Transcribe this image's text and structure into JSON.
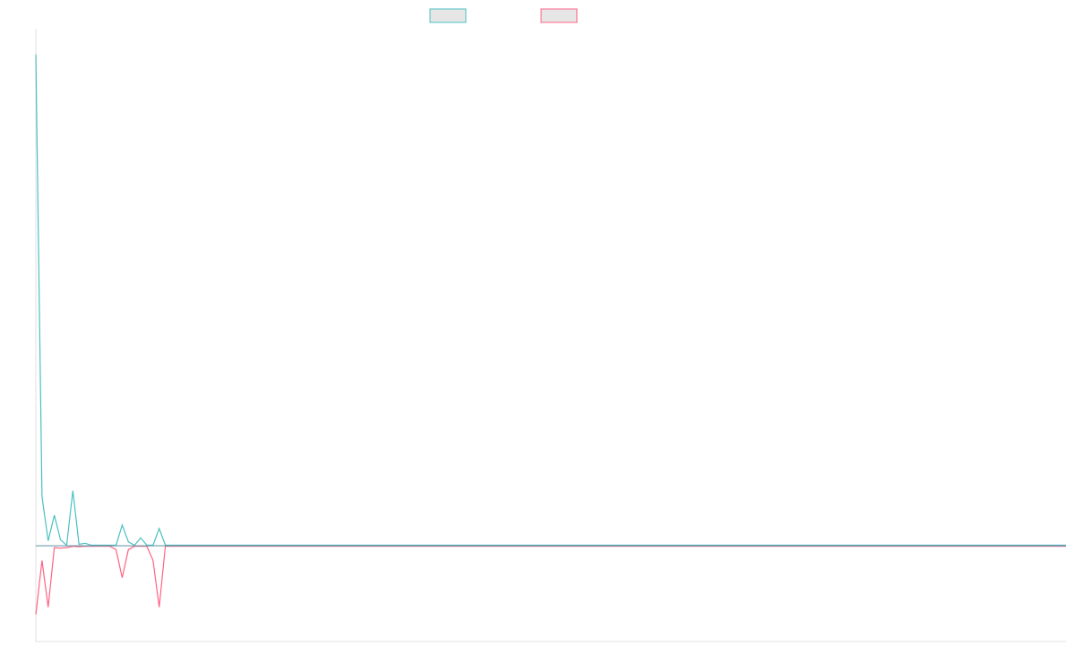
{
  "chart_data": {
    "type": "line",
    "title": "",
    "xlabel": "",
    "ylabel": "",
    "legend": {
      "placement": "top-center",
      "entries": [
        "",
        ""
      ]
    },
    "grid": false,
    "xlim": [
      0,
      167
    ],
    "ylim": [
      -195,
      1045
    ],
    "series": [
      {
        "color": "#4bc0c0",
        "fill": "#e6e6e6",
        "points": [
          [
            0,
            1000
          ],
          [
            1,
            100
          ],
          [
            2,
            10
          ],
          [
            3,
            62
          ],
          [
            4,
            12
          ],
          [
            5,
            1
          ],
          [
            6,
            112
          ],
          [
            7,
            3
          ],
          [
            8,
            5
          ],
          [
            9,
            1
          ],
          [
            12,
            1
          ],
          [
            13,
            1
          ],
          [
            14,
            42
          ],
          [
            15,
            8
          ],
          [
            16,
            1
          ],
          [
            17,
            16
          ],
          [
            18,
            1
          ],
          [
            19,
            1
          ],
          [
            20,
            35
          ],
          [
            21,
            1
          ],
          [
            22,
            1
          ],
          [
            23,
            1
          ],
          [
            24,
            1
          ],
          [
            25,
            1
          ],
          [
            33,
            1
          ],
          [
            34,
            1
          ],
          [
            35,
            1
          ],
          [
            36,
            1
          ],
          [
            37,
            1
          ],
          [
            38,
            1
          ],
          [
            39,
            1
          ],
          [
            40,
            1
          ],
          [
            41,
            1
          ],
          [
            42,
            1
          ],
          [
            43,
            1
          ],
          [
            44,
            1
          ],
          [
            45,
            1
          ],
          [
            46,
            1
          ],
          [
            47,
            1
          ],
          [
            48,
            1
          ],
          [
            49,
            1
          ],
          [
            50,
            1
          ],
          [
            51,
            1
          ],
          [
            52,
            1
          ],
          [
            53,
            1
          ],
          [
            54,
            1
          ],
          [
            55,
            1
          ],
          [
            56,
            1
          ],
          [
            57,
            1
          ],
          [
            58,
            1
          ],
          [
            59,
            1
          ],
          [
            60,
            1
          ],
          [
            61,
            1
          ],
          [
            62,
            1
          ],
          [
            63,
            1
          ],
          [
            64,
            1
          ],
          [
            65,
            1
          ],
          [
            66,
            1
          ],
          [
            67,
            1
          ],
          [
            68,
            1
          ],
          [
            69,
            1
          ],
          [
            70,
            1
          ],
          [
            71,
            1
          ],
          [
            72,
            1
          ],
          [
            73,
            1
          ],
          [
            74,
            1
          ],
          [
            75,
            1
          ],
          [
            76,
            1
          ],
          [
            77,
            1
          ],
          [
            78,
            1
          ],
          [
            79,
            1
          ],
          [
            80,
            1
          ],
          [
            81,
            1
          ],
          [
            82,
            1
          ],
          [
            83,
            1
          ],
          [
            84,
            1
          ],
          [
            85,
            1
          ],
          [
            86,
            1
          ],
          [
            87,
            1
          ],
          [
            88,
            1
          ],
          [
            89,
            1
          ],
          [
            90,
            1
          ],
          [
            91,
            1
          ],
          [
            92,
            1
          ],
          [
            93,
            1
          ],
          [
            94,
            1
          ],
          [
            95,
            1
          ],
          [
            96,
            1
          ],
          [
            97,
            1
          ],
          [
            98,
            1
          ],
          [
            99,
            1
          ],
          [
            100,
            1
          ],
          [
            101,
            1
          ],
          [
            102,
            1
          ],
          [
            103,
            1
          ],
          [
            104,
            1
          ],
          [
            105,
            1
          ],
          [
            106,
            1
          ],
          [
            107,
            1
          ],
          [
            108,
            1
          ],
          [
            109,
            1
          ],
          [
            110,
            1
          ],
          [
            111,
            1
          ],
          [
            112,
            1
          ],
          [
            113,
            1
          ],
          [
            114,
            1
          ],
          [
            115,
            1
          ],
          [
            116,
            1
          ],
          [
            117,
            1
          ],
          [
            118,
            1
          ],
          [
            119,
            1
          ],
          [
            120,
            1
          ],
          [
            121,
            1
          ],
          [
            122,
            1
          ],
          [
            123,
            1
          ],
          [
            124,
            1
          ],
          [
            125,
            1
          ],
          [
            126,
            1
          ],
          [
            127,
            1
          ],
          [
            128,
            1
          ],
          [
            129,
            1
          ],
          [
            130,
            1
          ],
          [
            131,
            1
          ],
          [
            132,
            1
          ],
          [
            133,
            1
          ],
          [
            134,
            1
          ],
          [
            135,
            1
          ],
          [
            136,
            1
          ],
          [
            137,
            1
          ],
          [
            138,
            1
          ],
          [
            139,
            1
          ],
          [
            140,
            1
          ],
          [
            141,
            1
          ],
          [
            142,
            1
          ],
          [
            143,
            1
          ],
          [
            144,
            1
          ],
          [
            145,
            1
          ],
          [
            146,
            1
          ],
          [
            147,
            1
          ],
          [
            148,
            1
          ],
          [
            149,
            1
          ],
          [
            150,
            1
          ],
          [
            151,
            1
          ],
          [
            152,
            1
          ],
          [
            153,
            1
          ],
          [
            154,
            1
          ],
          [
            155,
            1
          ],
          [
            156,
            1
          ],
          [
            157,
            1
          ],
          [
            158,
            1
          ],
          [
            159,
            1
          ],
          [
            160,
            1
          ],
          [
            161,
            1
          ],
          [
            162,
            1
          ],
          [
            163,
            1
          ],
          [
            164,
            1
          ],
          [
            165,
            1
          ],
          [
            166,
            1
          ],
          [
            167,
            1
          ]
        ]
      },
      {
        "color": "#ff6384",
        "fill": "#e6e6e6",
        "points": [
          [
            0,
            -140
          ],
          [
            1,
            -30
          ],
          [
            2,
            -125
          ],
          [
            3,
            -4
          ],
          [
            4,
            -5
          ],
          [
            5,
            -4
          ],
          [
            6,
            -1
          ],
          [
            7,
            -2
          ],
          [
            8,
            -1
          ],
          [
            9,
            -1
          ],
          [
            12,
            -1
          ],
          [
            13,
            -8
          ],
          [
            14,
            -65
          ],
          [
            15,
            -8
          ],
          [
            16,
            -1
          ],
          [
            17,
            -1
          ],
          [
            18,
            -1
          ],
          [
            19,
            -30
          ],
          [
            20,
            -125
          ],
          [
            21,
            -1
          ],
          [
            22,
            -1
          ],
          [
            23,
            -1
          ],
          [
            24,
            -1
          ],
          [
            25,
            -1
          ],
          [
            33,
            -1
          ],
          [
            34,
            -1
          ],
          [
            35,
            -1
          ],
          [
            36,
            -1
          ],
          [
            37,
            -1
          ],
          [
            38,
            -1
          ],
          [
            39,
            -1
          ],
          [
            40,
            -1
          ],
          [
            41,
            -1
          ],
          [
            42,
            -1
          ],
          [
            43,
            -1
          ],
          [
            44,
            -1
          ],
          [
            45,
            -1
          ],
          [
            46,
            -1
          ],
          [
            47,
            -1
          ],
          [
            48,
            -1
          ],
          [
            49,
            -1
          ],
          [
            50,
            -1
          ],
          [
            51,
            -1
          ],
          [
            52,
            -1
          ],
          [
            53,
            -1
          ],
          [
            54,
            -1
          ],
          [
            55,
            -1
          ],
          [
            56,
            -1
          ],
          [
            57,
            -1
          ],
          [
            58,
            -1
          ],
          [
            59,
            -1
          ],
          [
            60,
            -1
          ],
          [
            61,
            -1
          ],
          [
            62,
            -1
          ],
          [
            63,
            -1
          ],
          [
            64,
            -1
          ],
          [
            65,
            -1
          ],
          [
            66,
            -1
          ],
          [
            67,
            -1
          ],
          [
            68,
            -1
          ],
          [
            69,
            -1
          ],
          [
            70,
            -1
          ],
          [
            71,
            -1
          ],
          [
            72,
            -1
          ],
          [
            73,
            -1
          ],
          [
            74,
            -1
          ],
          [
            75,
            -1
          ],
          [
            76,
            -1
          ],
          [
            77,
            -1
          ],
          [
            78,
            -1
          ],
          [
            79,
            -1
          ],
          [
            80,
            -1
          ],
          [
            81,
            -1
          ],
          [
            82,
            -1
          ],
          [
            83,
            -1
          ],
          [
            84,
            -1
          ],
          [
            85,
            -1
          ],
          [
            86,
            -1
          ],
          [
            87,
            -1
          ],
          [
            88,
            -1
          ],
          [
            89,
            -1
          ],
          [
            90,
            -1
          ],
          [
            91,
            -1
          ],
          [
            92,
            -1
          ],
          [
            93,
            -1
          ],
          [
            94,
            -1
          ],
          [
            95,
            -1
          ],
          [
            96,
            -1
          ],
          [
            97,
            -1
          ],
          [
            98,
            -1
          ],
          [
            99,
            -1
          ],
          [
            100,
            -1
          ],
          [
            101,
            -1
          ],
          [
            102,
            -1
          ],
          [
            103,
            -1
          ],
          [
            104,
            -1
          ],
          [
            105,
            -1
          ],
          [
            106,
            -1
          ],
          [
            107,
            -1
          ],
          [
            108,
            -1
          ],
          [
            109,
            -1
          ],
          [
            110,
            -1
          ],
          [
            111,
            -1
          ],
          [
            112,
            -1
          ],
          [
            113,
            -1
          ],
          [
            114,
            -1
          ],
          [
            115,
            -1
          ],
          [
            116,
            -1
          ],
          [
            117,
            -1
          ],
          [
            118,
            -1
          ],
          [
            119,
            -1
          ],
          [
            120,
            -1
          ],
          [
            121,
            -1
          ],
          [
            122,
            -1
          ],
          [
            123,
            -1
          ],
          [
            124,
            -1
          ],
          [
            125,
            -1
          ],
          [
            126,
            -1
          ],
          [
            127,
            -1
          ],
          [
            128,
            -1
          ],
          [
            129,
            -1
          ],
          [
            130,
            -1
          ],
          [
            131,
            -1
          ],
          [
            132,
            -1
          ],
          [
            133,
            -1
          ],
          [
            134,
            -1
          ],
          [
            135,
            -1
          ],
          [
            136,
            -1
          ],
          [
            137,
            -1
          ],
          [
            138,
            -1
          ],
          [
            139,
            -1
          ],
          [
            140,
            -1
          ],
          [
            141,
            -1
          ],
          [
            142,
            -1
          ],
          [
            143,
            -1
          ],
          [
            144,
            -1
          ],
          [
            145,
            -1
          ],
          [
            146,
            -1
          ],
          [
            147,
            -1
          ],
          [
            148,
            -1
          ],
          [
            149,
            -1
          ],
          [
            150,
            -1
          ],
          [
            151,
            -1
          ],
          [
            152,
            -1
          ],
          [
            153,
            -1
          ],
          [
            154,
            -1
          ],
          [
            155,
            -1
          ],
          [
            156,
            -1
          ],
          [
            157,
            -1
          ],
          [
            158,
            -1
          ],
          [
            159,
            -1
          ],
          [
            160,
            -1
          ],
          [
            161,
            -1
          ],
          [
            162,
            -1
          ],
          [
            163,
            -1
          ],
          [
            164,
            -1
          ],
          [
            165,
            -1
          ],
          [
            166,
            -1
          ],
          [
            167,
            -1
          ]
        ]
      }
    ]
  }
}
